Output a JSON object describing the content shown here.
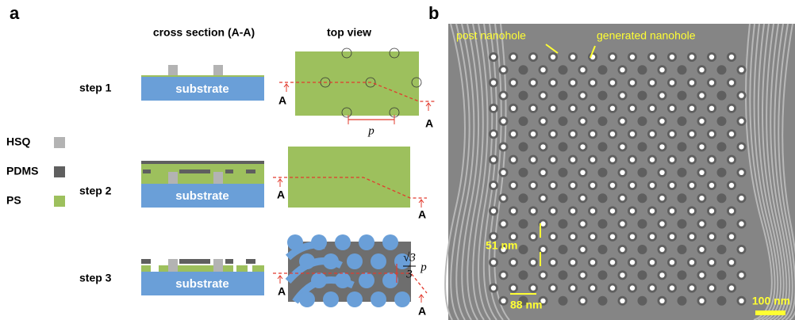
{
  "panel_a": {
    "label": "a",
    "headers": [
      "cross section (A-A)",
      "top view"
    ],
    "legend": [
      {
        "label": "HSQ",
        "color": "#b3b3b3"
      },
      {
        "label": "PDMS",
        "color": "#5f5f5f"
      },
      {
        "label": "PS",
        "color": "#9dc05d"
      }
    ],
    "steps": [
      {
        "label": "step 1",
        "substrate": "substrate",
        "marks": [
          "A",
          "A"
        ]
      },
      {
        "label": "step 2",
        "substrate": "substrate",
        "marks": [
          "A",
          "A"
        ]
      },
      {
        "label": "step 3",
        "substrate": "substrate",
        "marks": [
          "A",
          "A"
        ]
      }
    ],
    "period_label": "p",
    "spacing_label": {
      "numerator": "√3",
      "denominator": "3",
      "symbol": "p"
    }
  },
  "panel_b": {
    "label": "b",
    "annotations": [
      "post nanohole",
      "generated nanohole"
    ],
    "dimensions": [
      "51 nm",
      "88 nm"
    ],
    "scale_bar": "100 nm"
  }
}
